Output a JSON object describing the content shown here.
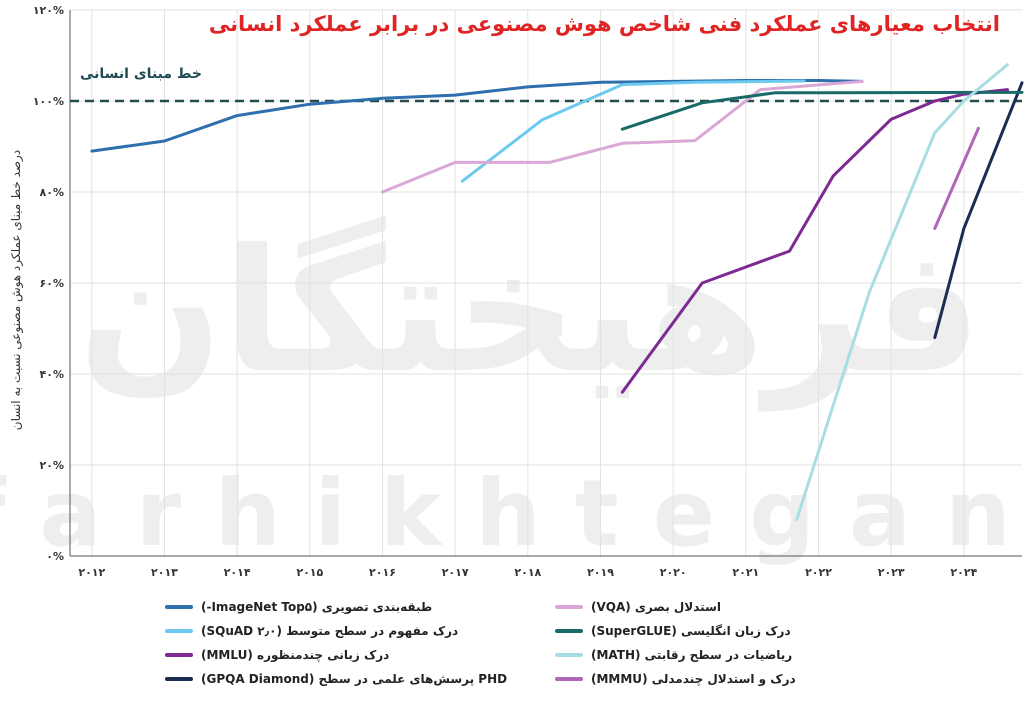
{
  "title": "انتخاب معیارهای عملکرد فنی شاخص هوش مصنوعی در برابر عملکرد انسانی",
  "ylabel": "درصد خط مبنای عملکرد هوش مصنوعی نسبت به انسان",
  "baseline_label": "خط مبنای انسانی",
  "watermark": "فرهیختگان farhikhtegan",
  "chart_data": {
    "type": "line",
    "title": "انتخاب معیارهای عملکرد فنی شاخص هوش مصنوعی در برابر عملکرد انسانی",
    "xlabel": "",
    "ylabel": "درصد خط مبنای عملکرد هوش مصنوعی نسبت به انسان",
    "x_ticks": [
      2012,
      2013,
      2014,
      2015,
      2016,
      2017,
      2018,
      2019,
      2020,
      2021,
      2022,
      2023,
      2024
    ],
    "x_tick_labels": [
      "۲۰۱۲",
      "۲۰۱۳",
      "۲۰۱۴",
      "۲۰۱۵",
      "۲۰۱۶",
      "۲۰۱۷",
      "۲۰۱۸",
      "۲۰۱۹",
      "۲۰۲۰",
      "۲۰۲۱",
      "۲۰۲۲",
      "۲۰۲۳",
      "۲۰۲۴"
    ],
    "xlim": [
      2011.7,
      2024.8
    ],
    "y_ticks": [
      0,
      20,
      40,
      60,
      80,
      100,
      120
    ],
    "y_tick_labels": [
      "۰%",
      "۲۰%",
      "۴۰%",
      "۶۰%",
      "۸۰%",
      "۱۰۰%",
      "۱۲۰%"
    ],
    "ylim": [
      0,
      120
    ],
    "grid": true,
    "baseline": 100,
    "legend_position": "bottom",
    "series": [
      {
        "name": "طبقه‌بندی تصویری (ImageNet Top۵-)",
        "color": "#2e6fae",
        "x": [
          2012,
          2013,
          2014,
          2015,
          2016,
          2017,
          2018,
          2019,
          2020,
          2021,
          2022,
          2022.6
        ],
        "y": [
          89,
          91.2,
          96.8,
          99.3,
          100.6,
          101.3,
          103.1,
          104.1,
          104.3,
          104.5,
          104.5,
          104.3
        ]
      },
      {
        "name": "درک مفهوم در سطح متوسط (SQuAD ۲٫۰)",
        "color": "#6ccaf0",
        "x": [
          2017.1,
          2018.2,
          2019.3,
          2020.3,
          2021.8
        ],
        "y": [
          82.4,
          95.9,
          103.6,
          104.1,
          104.4
        ]
      },
      {
        "name": "درک زبانی چندمنظوره (MMLU)",
        "color": "#7d2a92",
        "x": [
          2019.3,
          2020.4,
          2021.6,
          2022.2,
          2023.0,
          2023.6,
          2024.0,
          2024.6
        ],
        "y": [
          36,
          60,
          67,
          83.5,
          96,
          100,
          101.5,
          102.5
        ]
      },
      {
        "name": "PHD پرسش‌های علمی در سطح (GPQA Diamond)",
        "color": "#1b2c52",
        "x": [
          2023.6,
          2024.0,
          2024.8
        ],
        "y": [
          48,
          72,
          104
        ]
      },
      {
        "name": "استدلال بصری (VQA)",
        "color": "#d9a8d6",
        "x": [
          2016.0,
          2017.0,
          2018.3,
          2019.3,
          2020.3,
          2021.2,
          2022.6
        ],
        "y": [
          80,
          86.5,
          86.5,
          90.7,
          91.3,
          102.5,
          104.3
        ]
      },
      {
        "name": "درک زبان انگلیسی (SuperGLUE)",
        "color": "#1a6a6a",
        "x": [
          2019.3,
          2020.4,
          2021.4,
          2022.1,
          2024.2,
          2024.8
        ],
        "y": [
          93.8,
          99.6,
          101.8,
          101.8,
          101.9,
          101.9
        ]
      },
      {
        "name": "ریاضیات در سطح رقابتی (MATH)",
        "color": "#a8dde4",
        "x": [
          2021.7,
          2022.7,
          2023.6,
          2024.0,
          2024.6
        ],
        "y": [
          8,
          58,
          93,
          100,
          108
        ]
      },
      {
        "name": "درک و استدلال چندمدلی (MMMU)",
        "color": "#b066b6",
        "x": [
          2023.6,
          2024.2
        ],
        "y": [
          72,
          94
        ]
      }
    ]
  }
}
